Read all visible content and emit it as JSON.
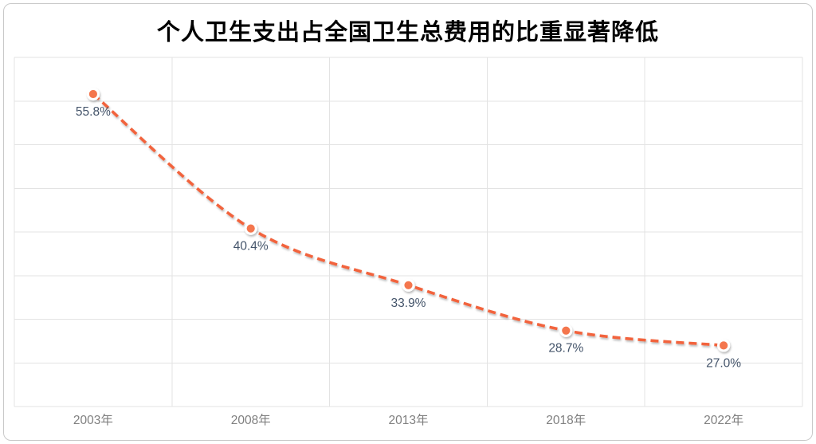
{
  "chart_data": {
    "type": "line",
    "title": "个人卫生支出占全国卫生总费用的比重显著降低",
    "categories": [
      "2003年",
      "2008年",
      "2013年",
      "2018年",
      "2022年"
    ],
    "values": [
      55.8,
      40.4,
      33.9,
      28.7,
      27.0
    ],
    "point_labels": [
      "55.8%",
      "40.4%",
      "33.9%",
      "28.7%",
      "27.0%"
    ],
    "xlabel": "",
    "ylabel": "",
    "ylim": [
      20,
      60
    ],
    "y_grid_step": 5,
    "grid": true,
    "legend_position": "none",
    "line_style": "dashed",
    "smooth": true,
    "colors": {
      "line": "#F2643C",
      "marker_fill": "#F4764E",
      "marker_ring": "#FFFFFF",
      "grid": "#E3E3E3",
      "data_label": "#44546A",
      "axis_label": "#7F7F7F",
      "title": "#000000",
      "background": "#FFFFFF",
      "outer_border": "#C9C9C9"
    }
  }
}
